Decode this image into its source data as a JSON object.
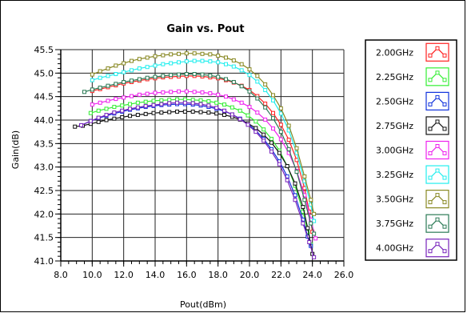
{
  "chart_data": {
    "type": "line",
    "title": "Gain vs. Pout",
    "xlabel": "Pout(dBm)",
    "ylabel": "Gain(dB)",
    "xlim": [
      8.0,
      26.0
    ],
    "ylim": [
      41.0,
      45.5
    ],
    "x_ticks": [
      "8.0",
      "10.0",
      "12.0",
      "14.0",
      "16.0",
      "18.0",
      "20.0",
      "22.0",
      "24.0",
      "26.0"
    ],
    "y_ticks": [
      "41.0",
      "41.5",
      "42.0",
      "42.5",
      "43.0",
      "43.5",
      "44.0",
      "44.5",
      "45.0",
      "45.5"
    ],
    "grid": true,
    "legend_position": "right",
    "series": [
      {
        "name": "2.00GHz",
        "color": "#ff2020",
        "x": [
          10.0,
          10.5,
          11.0,
          11.5,
          12.0,
          12.5,
          13.0,
          13.5,
          14.0,
          14.5,
          15.0,
          15.5,
          16.0,
          16.5,
          17.0,
          17.5,
          18.0,
          18.5,
          19.0,
          19.5,
          20.0,
          20.5,
          21.0,
          21.5,
          22.0,
          22.5,
          23.0,
          23.5,
          23.8,
          24.0
        ],
        "y": [
          44.62,
          44.66,
          44.7,
          44.74,
          44.78,
          44.81,
          44.84,
          44.87,
          44.89,
          44.91,
          44.92,
          44.93,
          44.94,
          44.94,
          44.93,
          44.91,
          44.89,
          44.85,
          44.8,
          44.73,
          44.64,
          44.51,
          44.35,
          44.15,
          43.9,
          43.58,
          43.15,
          42.55,
          42.05,
          41.62
        ]
      },
      {
        "name": "2.25GHz",
        "color": "#33ee33",
        "x": [
          9.9,
          10.4,
          10.9,
          11.4,
          11.9,
          12.4,
          12.9,
          13.4,
          13.9,
          14.4,
          14.9,
          15.4,
          15.9,
          16.4,
          16.9,
          17.4,
          17.9,
          18.4,
          18.9,
          19.4,
          19.9,
          20.4,
          20.9,
          21.4,
          21.9,
          22.4,
          22.9,
          23.4,
          23.7,
          23.9
        ],
        "y": [
          44.15,
          44.2,
          44.24,
          44.28,
          44.31,
          44.34,
          44.37,
          44.39,
          44.41,
          44.42,
          44.43,
          44.44,
          44.44,
          44.43,
          44.42,
          44.4,
          44.37,
          44.33,
          44.27,
          44.2,
          44.1,
          43.97,
          43.8,
          43.6,
          43.35,
          43.02,
          42.6,
          42.05,
          41.62,
          41.35
        ]
      },
      {
        "name": "2.50GHz",
        "color": "#1133dd",
        "x": [
          9.3,
          9.9,
          10.4,
          10.9,
          11.4,
          11.9,
          12.4,
          12.9,
          13.4,
          13.9,
          14.4,
          14.9,
          15.4,
          15.9,
          16.4,
          16.9,
          17.4,
          17.9,
          18.4,
          18.9,
          19.4,
          19.9,
          20.4,
          20.9,
          21.4,
          21.9,
          22.4,
          22.9,
          23.4,
          23.7,
          23.9
        ],
        "y": [
          43.89,
          43.98,
          44.04,
          44.09,
          44.14,
          44.18,
          44.22,
          44.25,
          44.28,
          44.3,
          44.32,
          44.33,
          44.34,
          44.34,
          44.33,
          44.31,
          44.28,
          44.24,
          44.19,
          44.12,
          44.03,
          43.92,
          43.78,
          43.6,
          43.38,
          43.12,
          42.8,
          42.4,
          41.88,
          41.52,
          41.32
        ]
      },
      {
        "name": "2.75GHz",
        "color": "#111111",
        "x": [
          8.9,
          9.4,
          9.9,
          10.4,
          10.9,
          11.4,
          11.9,
          12.4,
          12.9,
          13.4,
          13.9,
          14.4,
          14.9,
          15.4,
          15.9,
          16.4,
          16.9,
          17.4,
          17.9,
          18.4,
          18.9,
          19.4,
          19.9,
          20.4,
          20.9,
          21.4,
          21.9,
          22.4,
          22.9,
          23.4,
          23.7,
          24.0
        ],
        "y": [
          43.86,
          43.88,
          43.92,
          43.96,
          44.0,
          44.03,
          44.06,
          44.09,
          44.11,
          44.13,
          44.15,
          44.16,
          44.17,
          44.18,
          44.18,
          44.18,
          44.17,
          44.16,
          44.14,
          44.11,
          44.07,
          44.01,
          43.93,
          43.83,
          43.69,
          43.52,
          43.3,
          43.02,
          42.65,
          42.15,
          41.7,
          41.15
        ]
      },
      {
        "name": "3.00GHz",
        "color": "#ee22ee",
        "x": [
          10.0,
          10.5,
          11.0,
          11.5,
          12.0,
          12.5,
          13.0,
          13.5,
          14.0,
          14.5,
          15.0,
          15.5,
          16.0,
          16.5,
          17.0,
          17.5,
          18.0,
          18.5,
          19.0,
          19.5,
          20.0,
          20.5,
          21.0,
          21.5,
          22.0,
          22.5,
          23.0,
          23.5,
          23.9,
          24.2
        ],
        "y": [
          44.33,
          44.37,
          44.41,
          44.45,
          44.48,
          44.51,
          44.54,
          44.56,
          44.58,
          44.59,
          44.6,
          44.61,
          44.61,
          44.6,
          44.59,
          44.57,
          44.54,
          44.5,
          44.44,
          44.37,
          44.28,
          44.16,
          44.01,
          43.82,
          43.59,
          43.3,
          42.92,
          42.4,
          41.88,
          41.48
        ]
      },
      {
        "name": "3.25GHz",
        "color": "#22eeee",
        "x": [
          10.0,
          10.5,
          11.0,
          11.5,
          12.0,
          12.5,
          13.0,
          13.5,
          14.0,
          14.5,
          15.0,
          15.5,
          16.0,
          16.5,
          17.0,
          17.5,
          18.0,
          18.5,
          19.0,
          19.5,
          20.0,
          20.5,
          21.0,
          21.5,
          22.0,
          22.5,
          23.0,
          23.5,
          23.9,
          24.1
        ],
        "y": [
          44.85,
          44.9,
          44.94,
          44.98,
          45.02,
          45.06,
          45.1,
          45.13,
          45.16,
          45.19,
          45.21,
          45.23,
          45.25,
          45.26,
          45.26,
          45.25,
          45.23,
          45.19,
          45.14,
          45.06,
          44.96,
          44.82,
          44.64,
          44.42,
          44.14,
          43.78,
          43.3,
          42.7,
          42.2,
          41.85
        ]
      },
      {
        "name": "3.50GHz",
        "color": "#888822",
        "x": [
          10.0,
          10.5,
          11.0,
          11.5,
          12.0,
          12.5,
          13.0,
          13.5,
          14.0,
          14.5,
          15.0,
          15.5,
          16.0,
          16.5,
          17.0,
          17.5,
          18.0,
          18.5,
          19.0,
          19.5,
          20.0,
          20.5,
          21.0,
          21.5,
          22.0,
          22.5,
          23.0,
          23.5,
          23.9,
          24.1
        ],
        "y": [
          44.97,
          45.04,
          45.1,
          45.16,
          45.21,
          45.26,
          45.3,
          45.33,
          45.36,
          45.38,
          45.4,
          45.41,
          45.42,
          45.42,
          45.41,
          45.4,
          45.37,
          45.33,
          45.27,
          45.19,
          45.08,
          44.94,
          44.76,
          44.53,
          44.25,
          43.88,
          43.4,
          42.8,
          42.3,
          42.0
        ]
      },
      {
        "name": "3.75GHz",
        "color": "#2a7a55",
        "x": [
          9.5,
          10.0,
          10.5,
          11.0,
          11.5,
          12.0,
          12.5,
          13.0,
          13.5,
          14.0,
          14.5,
          15.0,
          15.5,
          16.0,
          16.5,
          17.0,
          17.5,
          18.0,
          18.5,
          19.0,
          19.5,
          20.0,
          20.5,
          21.0,
          21.5,
          22.0,
          22.5,
          23.0,
          23.5,
          23.9,
          24.1
        ],
        "y": [
          44.6,
          44.65,
          44.69,
          44.73,
          44.77,
          44.81,
          44.84,
          44.87,
          44.9,
          44.92,
          44.94,
          44.96,
          44.97,
          44.98,
          44.98,
          44.97,
          44.95,
          44.92,
          44.87,
          44.81,
          44.72,
          44.61,
          44.46,
          44.27,
          44.04,
          43.75,
          43.38,
          42.9,
          42.3,
          41.8,
          41.58
        ]
      },
      {
        "name": "4.00GHz",
        "color": "#7722bb",
        "x": [
          9.3,
          9.9,
          10.4,
          10.9,
          11.4,
          11.9,
          12.4,
          12.9,
          13.4,
          13.9,
          14.4,
          14.9,
          15.4,
          15.9,
          16.4,
          16.9,
          17.4,
          17.9,
          18.4,
          18.9,
          19.4,
          19.9,
          20.4,
          20.9,
          21.4,
          21.9,
          22.4,
          22.9,
          23.4,
          23.8,
          24.1
        ],
        "y": [
          43.89,
          43.98,
          44.05,
          44.11,
          44.16,
          44.2,
          44.24,
          44.27,
          44.3,
          44.32,
          44.34,
          44.36,
          44.37,
          44.37,
          44.36,
          44.34,
          44.31,
          44.26,
          44.2,
          44.12,
          44.02,
          43.9,
          43.75,
          43.56,
          43.33,
          43.06,
          42.72,
          42.3,
          41.8,
          41.4,
          41.08
        ]
      }
    ]
  }
}
